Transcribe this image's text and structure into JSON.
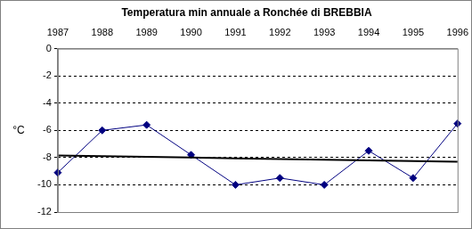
{
  "chart_data": {
    "type": "line",
    "title": "Temperatura min annuale a Ronchée di BREBBIA",
    "ylabel": "°C",
    "categories": [
      "1987",
      "1988",
      "1989",
      "1990",
      "1991",
      "1992",
      "1993",
      "1994",
      "1995",
      "1996"
    ],
    "series": [
      {
        "color": "#000080",
        "marker": "diamond",
        "line_style": "solid",
        "values": [
          -9.1,
          -6,
          -5.6,
          -7.8,
          -10,
          -9.5,
          -10,
          -7.5,
          -9.5,
          -5.5
        ]
      },
      {
        "color": "#000000",
        "marker": "none",
        "line_style": "solid",
        "values": [
          -7.85,
          -7.9,
          -7.95,
          -8.0,
          -8.05,
          -8.1,
          -8.15,
          -8.2,
          -8.25,
          -8.3
        ]
      }
    ],
    "ylim": [
      -12,
      0
    ],
    "yticks": [
      0,
      -2,
      -4,
      -6,
      -8,
      -10,
      -12
    ],
    "grid": true
  }
}
